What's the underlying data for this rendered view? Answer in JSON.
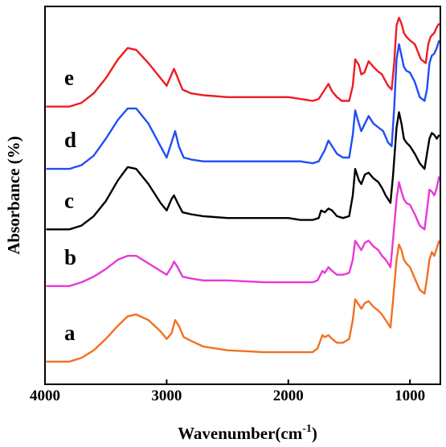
{
  "chart_data": {
    "type": "line",
    "xlabel": "Wavenumber(cm",
    "xlabel_sup": "-1",
    "xlabel_end": ")",
    "ylabel": "Absorbance (%)",
    "x_reversed": true,
    "xlim": [
      4000,
      750
    ],
    "ylim": [
      0,
      100
    ],
    "x_ticks": [
      4000,
      3000,
      2000,
      1000
    ],
    "x_tick_labels": [
      "4000",
      "3000",
      "2000",
      "1000"
    ],
    "y_tick_labels": false,
    "grid": false,
    "legend": "inline labels at left",
    "series": [
      {
        "name": "e",
        "color": "#ee1c23",
        "points": [
          [
            3990,
            73.5
          ],
          [
            3800,
            73.5
          ],
          [
            3700,
            74.5
          ],
          [
            3600,
            77
          ],
          [
            3500,
            81
          ],
          [
            3400,
            86
          ],
          [
            3320,
            89
          ],
          [
            3250,
            88.5
          ],
          [
            3150,
            85
          ],
          [
            3050,
            81
          ],
          [
            3000,
            79
          ],
          [
            2960,
            82
          ],
          [
            2940,
            83.5
          ],
          [
            2920,
            82
          ],
          [
            2870,
            78
          ],
          [
            2800,
            77
          ],
          [
            2700,
            76.5
          ],
          [
            2500,
            76
          ],
          [
            2200,
            76
          ],
          [
            2000,
            76
          ],
          [
            1900,
            75.5
          ],
          [
            1800,
            75
          ],
          [
            1750,
            75.5
          ],
          [
            1700,
            78
          ],
          [
            1670,
            79.5
          ],
          [
            1640,
            77.5
          ],
          [
            1600,
            76
          ],
          [
            1560,
            75
          ],
          [
            1500,
            75
          ],
          [
            1470,
            79
          ],
          [
            1450,
            86
          ],
          [
            1420,
            84.5
          ],
          [
            1400,
            82
          ],
          [
            1375,
            82.5
          ],
          [
            1340,
            85.5
          ],
          [
            1300,
            84
          ],
          [
            1270,
            83
          ],
          [
            1230,
            82
          ],
          [
            1180,
            79
          ],
          [
            1150,
            78
          ],
          [
            1130,
            85
          ],
          [
            1110,
            95
          ],
          [
            1090,
            97
          ],
          [
            1070,
            95.5
          ],
          [
            1050,
            93
          ],
          [
            1030,
            92
          ],
          [
            1000,
            91
          ],
          [
            960,
            90
          ],
          [
            910,
            86
          ],
          [
            870,
            85
          ],
          [
            850,
            90
          ],
          [
            830,
            92
          ],
          [
            800,
            93
          ],
          [
            780,
            94.5
          ],
          [
            760,
            95.5
          ]
        ]
      },
      {
        "name": "d",
        "color": "#1f4ef5",
        "points": [
          [
            3990,
            57
          ],
          [
            3800,
            57
          ],
          [
            3700,
            58
          ],
          [
            3600,
            60.5
          ],
          [
            3500,
            65
          ],
          [
            3400,
            70
          ],
          [
            3320,
            73
          ],
          [
            3250,
            73
          ],
          [
            3150,
            69
          ],
          [
            3050,
            63
          ],
          [
            3000,
            60
          ],
          [
            2960,
            64
          ],
          [
            2930,
            67
          ],
          [
            2900,
            63
          ],
          [
            2860,
            60
          ],
          [
            2800,
            59.5
          ],
          [
            2700,
            59
          ],
          [
            2400,
            59
          ],
          [
            2100,
            59
          ],
          [
            1900,
            59
          ],
          [
            1800,
            58.5
          ],
          [
            1750,
            59
          ],
          [
            1700,
            62
          ],
          [
            1670,
            64.5
          ],
          [
            1640,
            63
          ],
          [
            1600,
            61
          ],
          [
            1550,
            60
          ],
          [
            1500,
            60
          ],
          [
            1470,
            66
          ],
          [
            1450,
            72.5
          ],
          [
            1420,
            69
          ],
          [
            1400,
            67
          ],
          [
            1370,
            69
          ],
          [
            1340,
            71
          ],
          [
            1300,
            69
          ],
          [
            1260,
            68
          ],
          [
            1220,
            67
          ],
          [
            1180,
            64
          ],
          [
            1150,
            63
          ],
          [
            1130,
            73
          ],
          [
            1110,
            86
          ],
          [
            1090,
            90
          ],
          [
            1070,
            87
          ],
          [
            1050,
            84
          ],
          [
            1030,
            83
          ],
          [
            1000,
            82.5
          ],
          [
            960,
            80
          ],
          [
            920,
            76
          ],
          [
            880,
            75
          ],
          [
            860,
            78
          ],
          [
            840,
            85
          ],
          [
            820,
            87
          ],
          [
            800,
            87.5
          ],
          [
            780,
            89
          ],
          [
            760,
            91
          ]
        ]
      },
      {
        "name": "c",
        "color": "#000000",
        "points": [
          [
            3990,
            41
          ],
          [
            3800,
            41
          ],
          [
            3700,
            42
          ],
          [
            3600,
            44.5
          ],
          [
            3500,
            48.5
          ],
          [
            3400,
            54
          ],
          [
            3320,
            57.5
          ],
          [
            3250,
            57
          ],
          [
            3150,
            53
          ],
          [
            3050,
            48
          ],
          [
            3000,
            46
          ],
          [
            2960,
            49
          ],
          [
            2940,
            50
          ],
          [
            2910,
            48
          ],
          [
            2870,
            45.5
          ],
          [
            2800,
            45
          ],
          [
            2700,
            44.5
          ],
          [
            2500,
            44
          ],
          [
            2200,
            44
          ],
          [
            2000,
            44
          ],
          [
            1900,
            43.5
          ],
          [
            1800,
            43.5
          ],
          [
            1750,
            44
          ],
          [
            1730,
            46
          ],
          [
            1700,
            45.5
          ],
          [
            1670,
            46.5
          ],
          [
            1640,
            46
          ],
          [
            1600,
            44.5
          ],
          [
            1550,
            44
          ],
          [
            1500,
            44.5
          ],
          [
            1470,
            50
          ],
          [
            1450,
            57
          ],
          [
            1420,
            54
          ],
          [
            1400,
            53
          ],
          [
            1370,
            55.5
          ],
          [
            1340,
            56
          ],
          [
            1300,
            54.5
          ],
          [
            1260,
            53.5
          ],
          [
            1230,
            52
          ],
          [
            1200,
            50
          ],
          [
            1160,
            48
          ],
          [
            1140,
            55
          ],
          [
            1110,
            68
          ],
          [
            1090,
            72
          ],
          [
            1070,
            69
          ],
          [
            1050,
            65
          ],
          [
            1030,
            64
          ],
          [
            1000,
            63
          ],
          [
            960,
            61
          ],
          [
            920,
            58.5
          ],
          [
            880,
            57
          ],
          [
            860,
            61
          ],
          [
            840,
            65
          ],
          [
            820,
            66.5
          ],
          [
            800,
            66
          ],
          [
            780,
            65
          ],
          [
            760,
            66
          ]
        ]
      },
      {
        "name": "b",
        "color": "#e838d8",
        "points": [
          [
            3990,
            26
          ],
          [
            3800,
            26
          ],
          [
            3700,
            27
          ],
          [
            3600,
            28.5
          ],
          [
            3500,
            30.5
          ],
          [
            3400,
            33
          ],
          [
            3320,
            34
          ],
          [
            3250,
            34
          ],
          [
            3150,
            32
          ],
          [
            3050,
            30
          ],
          [
            3000,
            29
          ],
          [
            2960,
            31
          ],
          [
            2940,
            32.5
          ],
          [
            2910,
            31
          ],
          [
            2870,
            28.5
          ],
          [
            2800,
            28
          ],
          [
            2700,
            27.5
          ],
          [
            2500,
            27.5
          ],
          [
            2200,
            27
          ],
          [
            2000,
            27
          ],
          [
            1900,
            27
          ],
          [
            1800,
            27
          ],
          [
            1760,
            27.5
          ],
          [
            1720,
            30
          ],
          [
            1700,
            29.5
          ],
          [
            1670,
            31
          ],
          [
            1640,
            30
          ],
          [
            1600,
            29
          ],
          [
            1550,
            29
          ],
          [
            1500,
            29.5
          ],
          [
            1470,
            33
          ],
          [
            1450,
            38
          ],
          [
            1420,
            36.5
          ],
          [
            1400,
            35.5
          ],
          [
            1370,
            37.5
          ],
          [
            1340,
            38
          ],
          [
            1300,
            36.5
          ],
          [
            1260,
            35.5
          ],
          [
            1230,
            34
          ],
          [
            1200,
            33
          ],
          [
            1160,
            31
          ],
          [
            1140,
            38
          ],
          [
            1110,
            49
          ],
          [
            1090,
            53.5
          ],
          [
            1070,
            51
          ],
          [
            1050,
            49
          ],
          [
            1030,
            48
          ],
          [
            1000,
            47.5
          ],
          [
            960,
            45
          ],
          [
            920,
            42
          ],
          [
            880,
            41
          ],
          [
            860,
            46
          ],
          [
            840,
            51.5
          ],
          [
            820,
            51
          ],
          [
            800,
            50
          ],
          [
            780,
            52
          ],
          [
            760,
            55
          ]
        ]
      },
      {
        "name": "a",
        "color": "#f37021",
        "points": [
          [
            3990,
            6
          ],
          [
            3800,
            6
          ],
          [
            3700,
            7
          ],
          [
            3600,
            9
          ],
          [
            3500,
            12
          ],
          [
            3400,
            15.5
          ],
          [
            3320,
            18
          ],
          [
            3250,
            18.5
          ],
          [
            3150,
            17
          ],
          [
            3050,
            14
          ],
          [
            3000,
            12
          ],
          [
            2960,
            13.5
          ],
          [
            2930,
            17
          ],
          [
            2900,
            15.5
          ],
          [
            2860,
            12.5
          ],
          [
            2800,
            11.5
          ],
          [
            2700,
            10
          ],
          [
            2500,
            9
          ],
          [
            2200,
            8.5
          ],
          [
            2000,
            8.5
          ],
          [
            1900,
            8.5
          ],
          [
            1800,
            8.5
          ],
          [
            1760,
            9.5
          ],
          [
            1720,
            13
          ],
          [
            1700,
            12.5
          ],
          [
            1670,
            13
          ],
          [
            1640,
            12
          ],
          [
            1600,
            11
          ],
          [
            1550,
            11
          ],
          [
            1500,
            12
          ],
          [
            1470,
            17
          ],
          [
            1450,
            22.5
          ],
          [
            1420,
            21
          ],
          [
            1400,
            20
          ],
          [
            1370,
            21.5
          ],
          [
            1340,
            22
          ],
          [
            1300,
            20.5
          ],
          [
            1260,
            19.5
          ],
          [
            1230,
            18.5
          ],
          [
            1200,
            17
          ],
          [
            1160,
            15
          ],
          [
            1140,
            22
          ],
          [
            1110,
            33
          ],
          [
            1090,
            37
          ],
          [
            1070,
            35.5
          ],
          [
            1050,
            33
          ],
          [
            1030,
            32
          ],
          [
            1000,
            31
          ],
          [
            960,
            28
          ],
          [
            920,
            25
          ],
          [
            880,
            24
          ],
          [
            860,
            28
          ],
          [
            840,
            33
          ],
          [
            820,
            35
          ],
          [
            800,
            34
          ],
          [
            780,
            36
          ],
          [
            760,
            38
          ]
        ]
      }
    ]
  }
}
